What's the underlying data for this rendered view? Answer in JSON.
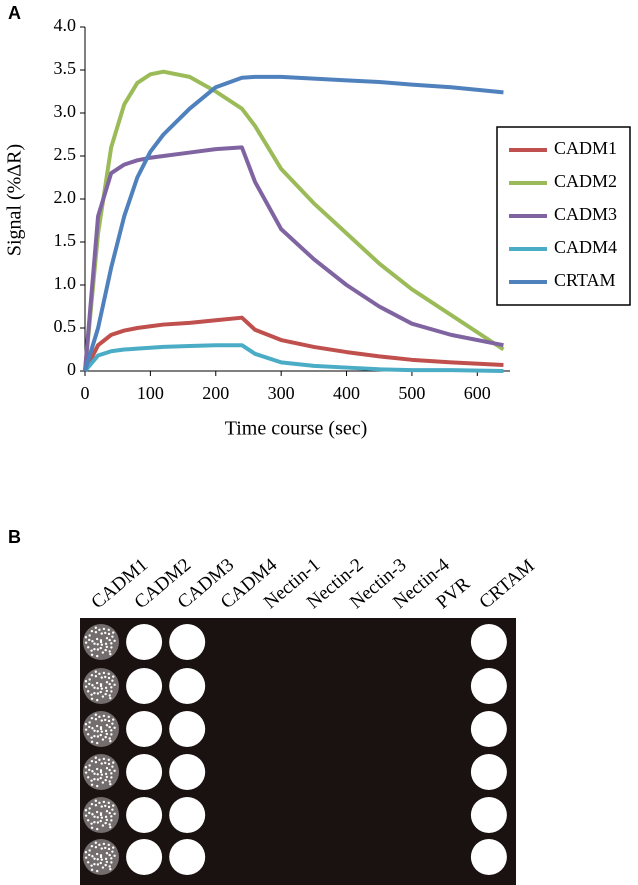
{
  "chart_data": {
    "type": "line",
    "panel_label": "A",
    "x_label": "Time course (sec)",
    "y_label": "Signal (%ΔR)",
    "x": [
      0,
      20,
      40,
      60,
      80,
      100,
      120,
      160,
      200,
      240,
      260,
      300,
      350,
      400,
      450,
      500,
      560,
      640
    ],
    "series": [
      {
        "name": "CADM1",
        "color": "#c0504d",
        "values": [
          0,
          0.3,
          0.42,
          0.47,
          0.5,
          0.52,
          0.54,
          0.56,
          0.59,
          0.62,
          0.48,
          0.36,
          0.28,
          0.22,
          0.17,
          0.13,
          0.1,
          0.07
        ]
      },
      {
        "name": "CADM2",
        "color": "#9bbb59",
        "values": [
          0,
          1.6,
          2.6,
          3.1,
          3.35,
          3.45,
          3.48,
          3.42,
          3.25,
          3.05,
          2.85,
          2.35,
          1.95,
          1.6,
          1.25,
          0.95,
          0.65,
          0.25
        ]
      },
      {
        "name": "CADM3",
        "color": "#8064a2",
        "values": [
          0,
          1.8,
          2.3,
          2.4,
          2.45,
          2.48,
          2.5,
          2.54,
          2.58,
          2.6,
          2.2,
          1.65,
          1.3,
          1.0,
          0.75,
          0.55,
          0.42,
          0.3
        ]
      },
      {
        "name": "CADM4",
        "color": "#4bacc6",
        "values": [
          0,
          0.18,
          0.23,
          0.25,
          0.26,
          0.27,
          0.28,
          0.29,
          0.3,
          0.3,
          0.2,
          0.1,
          0.06,
          0.04,
          0.02,
          0.01,
          0.01,
          0
        ]
      },
      {
        "name": "CRTAM",
        "color": "#4f81bd",
        "values": [
          0,
          0.5,
          1.2,
          1.8,
          2.25,
          2.55,
          2.75,
          3.05,
          3.3,
          3.41,
          3.42,
          3.42,
          3.4,
          3.38,
          3.36,
          3.33,
          3.3,
          3.24
        ]
      }
    ],
    "xlim": [
      0,
      650
    ],
    "xticks": [
      0,
      100,
      200,
      300,
      400,
      500,
      600
    ],
    "ylim": [
      0,
      4
    ],
    "yticks": [
      0,
      0.5,
      {
        "value": 1,
        "label": "1.0"
      },
      1.5,
      {
        "value": 2,
        "label": "2.0"
      },
      2.5,
      {
        "value": 3,
        "label": "3.0"
      },
      3.5,
      {
        "value": 4,
        "label": "4.0"
      }
    ],
    "legend": "right"
  },
  "dot_blot": {
    "panel_label": "B",
    "columns": [
      "CADM1",
      "CADM2",
      "CADM3",
      "CADM4",
      "Nectin-1",
      "Nectin-2",
      "Nectin-3",
      "Nectin-4",
      "PVR",
      "CRTAM"
    ]
  }
}
